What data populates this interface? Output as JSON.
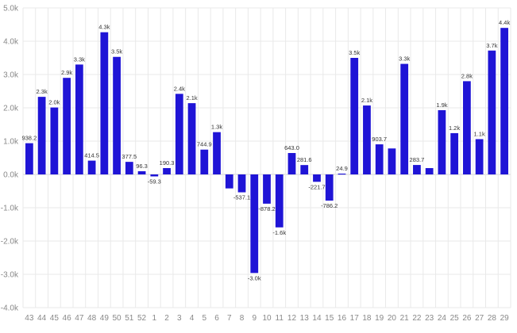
{
  "chart_data": {
    "type": "bar",
    "title": "",
    "xlabel": "",
    "ylabel": "",
    "ylim": [
      -4000,
      5000
    ],
    "grid": true,
    "bar_color": "#1f14d6",
    "y_ticks": [
      {
        "value": 5000,
        "label": "5.0k"
      },
      {
        "value": 4000,
        "label": "4.0k"
      },
      {
        "value": 3000,
        "label": "3.0k"
      },
      {
        "value": 2000,
        "label": "2.0k"
      },
      {
        "value": 1000,
        "label": "1.0k"
      },
      {
        "value": 0,
        "label": "0.0k"
      },
      {
        "value": -1000,
        "label": "-1.0k"
      },
      {
        "value": -2000,
        "label": "-2.0k"
      },
      {
        "value": -3000,
        "label": "-3.0k"
      },
      {
        "value": -4000,
        "label": "-4.0k"
      }
    ],
    "bars": [
      {
        "category": "43",
        "value": 938.2,
        "label": "938.2"
      },
      {
        "category": "44",
        "value": 2330,
        "label": "2.3k"
      },
      {
        "category": "45",
        "value": 2010,
        "label": "2.0k"
      },
      {
        "category": "46",
        "value": 2900,
        "label": "2.9k"
      },
      {
        "category": "47",
        "value": 3300,
        "label": "3.3k"
      },
      {
        "category": "48",
        "value": 414.5,
        "label": "414.5"
      },
      {
        "category": "49",
        "value": 4270,
        "label": "4.3k"
      },
      {
        "category": "50",
        "value": 3530,
        "label": "3.5k"
      },
      {
        "category": "51",
        "value": 377.5,
        "label": "377.5"
      },
      {
        "category": "52",
        "value": 96.3,
        "label": "96.3"
      },
      {
        "category": "1",
        "value": -59.3,
        "label": "-59.3"
      },
      {
        "category": "2",
        "value": 190.3,
        "label": "190.3"
      },
      {
        "category": "3",
        "value": 2420,
        "label": "2.4k"
      },
      {
        "category": "4",
        "value": 2140,
        "label": "2.1k"
      },
      {
        "category": "5",
        "value": 744.9,
        "label": "744.9"
      },
      {
        "category": "6",
        "value": 1270,
        "label": "1.3k"
      },
      {
        "category": "7",
        "value": -420,
        "label": ""
      },
      {
        "category": "8",
        "value": -537.1,
        "label": "-537.1"
      },
      {
        "category": "9",
        "value": -2960,
        "label": "-3.0k"
      },
      {
        "category": "10",
        "value": -878.2,
        "label": "-878.2"
      },
      {
        "category": "11",
        "value": -1590,
        "label": "-1.6k"
      },
      {
        "category": "12",
        "value": 643.0,
        "label": "643.0"
      },
      {
        "category": "13",
        "value": 281.6,
        "label": "281.6"
      },
      {
        "category": "14",
        "value": -221.7,
        "label": "-221.7"
      },
      {
        "category": "15",
        "value": -786.2,
        "label": "-786.2"
      },
      {
        "category": "16",
        "value": 24.9,
        "label": "24.9"
      },
      {
        "category": "17",
        "value": 3500,
        "label": "3.5k"
      },
      {
        "category": "18",
        "value": 2070,
        "label": "2.1k"
      },
      {
        "category": "19",
        "value": 903.7,
        "label": "903.7"
      },
      {
        "category": "20",
        "value": 780,
        "label": ""
      },
      {
        "category": "21",
        "value": 3320,
        "label": "3.3k"
      },
      {
        "category": "22",
        "value": 283.7,
        "label": "283.7"
      },
      {
        "category": "23",
        "value": 190,
        "label": ""
      },
      {
        "category": "24",
        "value": 1930,
        "label": "1.9k"
      },
      {
        "category": "25",
        "value": 1240,
        "label": "1.2k"
      },
      {
        "category": "26",
        "value": 2800,
        "label": "2.8k"
      },
      {
        "category": "27",
        "value": 1060,
        "label": "1.1k"
      },
      {
        "category": "28",
        "value": 3720,
        "label": "3.7k"
      },
      {
        "category": "29",
        "value": 4400,
        "label": "4.4k"
      }
    ]
  }
}
